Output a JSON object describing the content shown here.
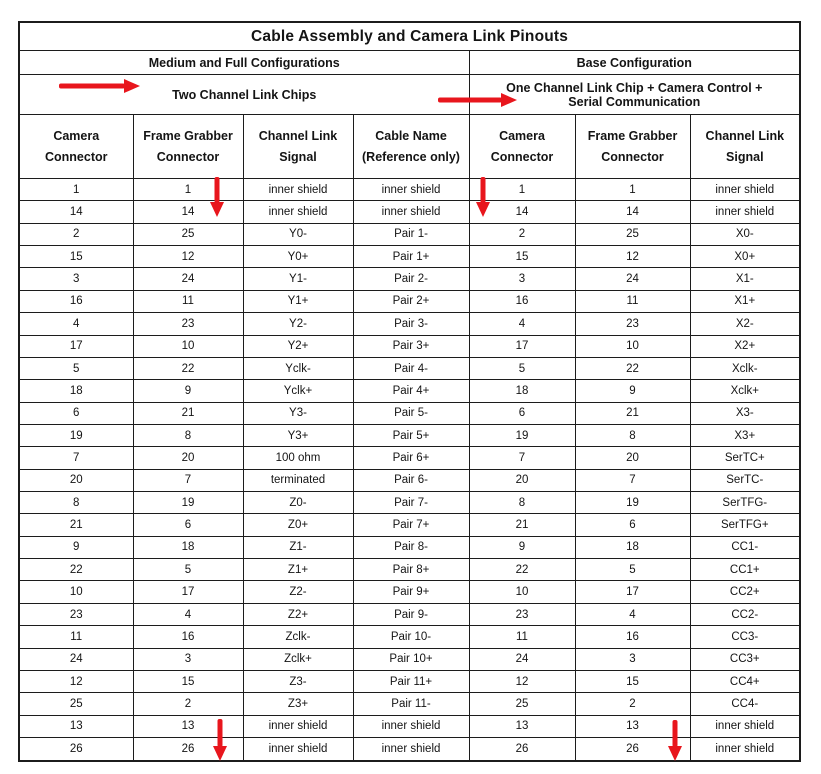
{
  "title": "Cable Assembly and Camera Link Pinouts",
  "sections": {
    "left": {
      "name": "Medium and Full Configurations",
      "subtitle": "Two Channel Link Chips",
      "columns": [
        "Camera Connector",
        "Frame Grabber Connector",
        "Channel Link Signal",
        "Cable Name (Reference only)"
      ]
    },
    "right": {
      "name": "Base Configuration",
      "subtitle_lines": [
        "One Channel Link Chip + Camera Control +",
        "Serial Communication"
      ],
      "columns": [
        "Camera Connector",
        "Frame Grabber Connector",
        "Channel Link Signal"
      ]
    }
  },
  "rows": [
    [
      "1",
      "1",
      "inner shield",
      "inner shield",
      "1",
      "1",
      "inner shield"
    ],
    [
      "14",
      "14",
      "inner shield",
      "inner shield",
      "14",
      "14",
      "inner shield"
    ],
    [
      "2",
      "25",
      "Y0-",
      "Pair 1-",
      "2",
      "25",
      "X0-"
    ],
    [
      "15",
      "12",
      "Y0+",
      "Pair 1+",
      "15",
      "12",
      "X0+"
    ],
    [
      "3",
      "24",
      "Y1-",
      "Pair 2-",
      "3",
      "24",
      "X1-"
    ],
    [
      "16",
      "11",
      "Y1+",
      "Pair 2+",
      "16",
      "11",
      "X1+"
    ],
    [
      "4",
      "23",
      "Y2-",
      "Pair 3-",
      "4",
      "23",
      "X2-"
    ],
    [
      "17",
      "10",
      "Y2+",
      "Pair 3+",
      "17",
      "10",
      "X2+"
    ],
    [
      "5",
      "22",
      "Yclk-",
      "Pair 4-",
      "5",
      "22",
      "Xclk-"
    ],
    [
      "18",
      "9",
      "Yclk+",
      "Pair 4+",
      "18",
      "9",
      "Xclk+"
    ],
    [
      "6",
      "21",
      "Y3-",
      "Pair 5-",
      "6",
      "21",
      "X3-"
    ],
    [
      "19",
      "8",
      "Y3+",
      "Pair 5+",
      "19",
      "8",
      "X3+"
    ],
    [
      "7",
      "20",
      "100 ohm",
      "Pair 6+",
      "7",
      "20",
      "SerTC+"
    ],
    [
      "20",
      "7",
      "terminated",
      "Pair 6-",
      "20",
      "7",
      "SerTC-"
    ],
    [
      "8",
      "19",
      "Z0-",
      "Pair 7-",
      "8",
      "19",
      "SerTFG-"
    ],
    [
      "21",
      "6",
      "Z0+",
      "Pair 7+",
      "21",
      "6",
      "SerTFG+"
    ],
    [
      "9",
      "18",
      "Z1-",
      "Pair 8-",
      "9",
      "18",
      "CC1-"
    ],
    [
      "22",
      "5",
      "Z1+",
      "Pair 8+",
      "22",
      "5",
      "CC1+"
    ],
    [
      "10",
      "17",
      "Z2-",
      "Pair 9+",
      "10",
      "17",
      "CC2+"
    ],
    [
      "23",
      "4",
      "Z2+",
      "Pair 9-",
      "23",
      "4",
      "CC2-"
    ],
    [
      "11",
      "16",
      "Zclk-",
      "Pair 10-",
      "11",
      "16",
      "CC3-"
    ],
    [
      "24",
      "3",
      "Zclk+",
      "Pair 10+",
      "24",
      "3",
      "CC3+"
    ],
    [
      "12",
      "15",
      "Z3-",
      "Pair 11+",
      "12",
      "15",
      "CC4+"
    ],
    [
      "25",
      "2",
      "Z3+",
      "Pair 11-",
      "25",
      "2",
      "CC4-"
    ],
    [
      "13",
      "13",
      "inner shield",
      "inner shield",
      "13",
      "13",
      "inner shield"
    ],
    [
      "26",
      "26",
      "inner shield",
      "inner shield",
      "26",
      "26",
      "inner shield"
    ]
  ],
  "colors": {
    "arrow_red": "#e8161d",
    "border": "#1c1c1c",
    "background": "#ffffff"
  }
}
